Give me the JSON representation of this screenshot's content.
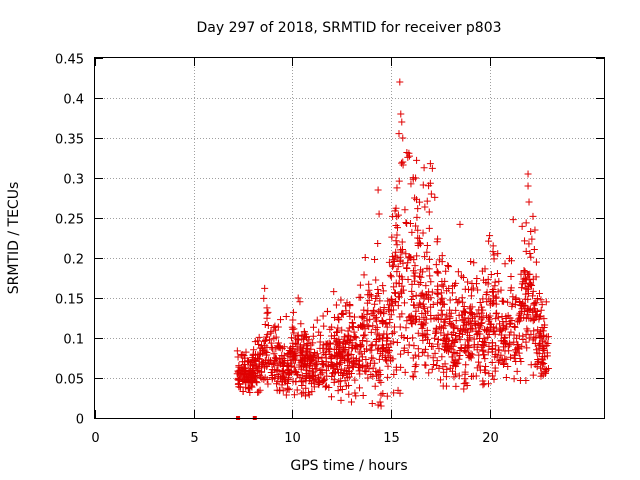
{
  "chart_data": {
    "type": "scatter",
    "title": "Day 297 of 2018, SRMTID for receiver p803",
    "xlabel": "GPS time / hours",
    "ylabel": "SRMTID / TECUs",
    "xlim": [
      0,
      25.8
    ],
    "ylim": [
      0,
      0.45
    ],
    "xticks": [
      0,
      5,
      10,
      15,
      20
    ],
    "xtick_labels": [
      "0",
      "5",
      "10",
      "15",
      "20"
    ],
    "yticks": [
      0,
      0.05,
      0.1,
      0.15,
      0.2,
      0.25,
      0.3,
      0.35,
      0.4,
      0.45
    ],
    "ytick_labels": [
      "0",
      "0.05",
      "0.1",
      "0.15",
      "0.2",
      "0.25",
      "0.3",
      "0.35",
      "0.4",
      "0.45"
    ],
    "grid": true,
    "marker": "plus",
    "color": "#e00000",
    "time_range_hours": [
      7.2,
      23.0
    ],
    "zero_markers_x": [
      7.25,
      8.1
    ],
    "envelope": [
      {
        "t": 7.2,
        "low": 0.035,
        "high": 0.085
      },
      {
        "t": 8.0,
        "low": 0.03,
        "high": 0.09
      },
      {
        "t": 8.6,
        "low": 0.035,
        "high": 0.16
      },
      {
        "t": 9.5,
        "low": 0.03,
        "high": 0.12
      },
      {
        "t": 10.3,
        "low": 0.025,
        "high": 0.15
      },
      {
        "t": 11.0,
        "low": 0.03,
        "high": 0.12
      },
      {
        "t": 12.0,
        "low": 0.025,
        "high": 0.14
      },
      {
        "t": 12.8,
        "low": 0.02,
        "high": 0.16
      },
      {
        "t": 13.5,
        "low": 0.03,
        "high": 0.17
      },
      {
        "t": 14.2,
        "low": 0.015,
        "high": 0.28
      },
      {
        "t": 14.8,
        "low": 0.02,
        "high": 0.17
      },
      {
        "t": 15.4,
        "low": 0.02,
        "high": 0.42
      },
      {
        "t": 16.2,
        "low": 0.03,
        "high": 0.32
      },
      {
        "t": 17.0,
        "low": 0.04,
        "high": 0.32
      },
      {
        "t": 17.8,
        "low": 0.04,
        "high": 0.2
      },
      {
        "t": 18.5,
        "low": 0.035,
        "high": 0.24
      },
      {
        "t": 19.3,
        "low": 0.04,
        "high": 0.19
      },
      {
        "t": 20.0,
        "low": 0.04,
        "high": 0.23
      },
      {
        "t": 20.8,
        "low": 0.05,
        "high": 0.2
      },
      {
        "t": 21.5,
        "low": 0.04,
        "high": 0.22
      },
      {
        "t": 22.0,
        "low": 0.05,
        "high": 0.3
      },
      {
        "t": 22.5,
        "low": 0.045,
        "high": 0.17
      },
      {
        "t": 23.0,
        "low": 0.04,
        "high": 0.14
      }
    ],
    "peaks": [
      {
        "x": 8.6,
        "y": 0.162
      },
      {
        "x": 10.3,
        "y": 0.15
      },
      {
        "x": 12.1,
        "y": 0.158
      },
      {
        "x": 14.35,
        "y": 0.285
      },
      {
        "x": 14.4,
        "y": 0.255
      },
      {
        "x": 15.45,
        "y": 0.42
      },
      {
        "x": 15.5,
        "y": 0.38
      },
      {
        "x": 15.55,
        "y": 0.37
      },
      {
        "x": 15.6,
        "y": 0.35
      },
      {
        "x": 15.6,
        "y": 0.32
      },
      {
        "x": 16.3,
        "y": 0.322
      },
      {
        "x": 16.25,
        "y": 0.3
      },
      {
        "x": 16.2,
        "y": 0.275
      },
      {
        "x": 16.25,
        "y": 0.24
      },
      {
        "x": 17.0,
        "y": 0.318
      },
      {
        "x": 17.1,
        "y": 0.312
      },
      {
        "x": 17.05,
        "y": 0.28
      },
      {
        "x": 18.5,
        "y": 0.242
      },
      {
        "x": 20.0,
        "y": 0.228
      },
      {
        "x": 21.2,
        "y": 0.248
      },
      {
        "x": 21.95,
        "y": 0.305
      },
      {
        "x": 21.95,
        "y": 0.29
      },
      {
        "x": 22.0,
        "y": 0.27
      },
      {
        "x": 22.2,
        "y": 0.252
      },
      {
        "x": 22.3,
        "y": 0.235
      },
      {
        "x": 14.5,
        "y": 0.015
      },
      {
        "x": 14.45,
        "y": 0.02
      },
      {
        "x": 13.0,
        "y": 0.02
      }
    ]
  }
}
